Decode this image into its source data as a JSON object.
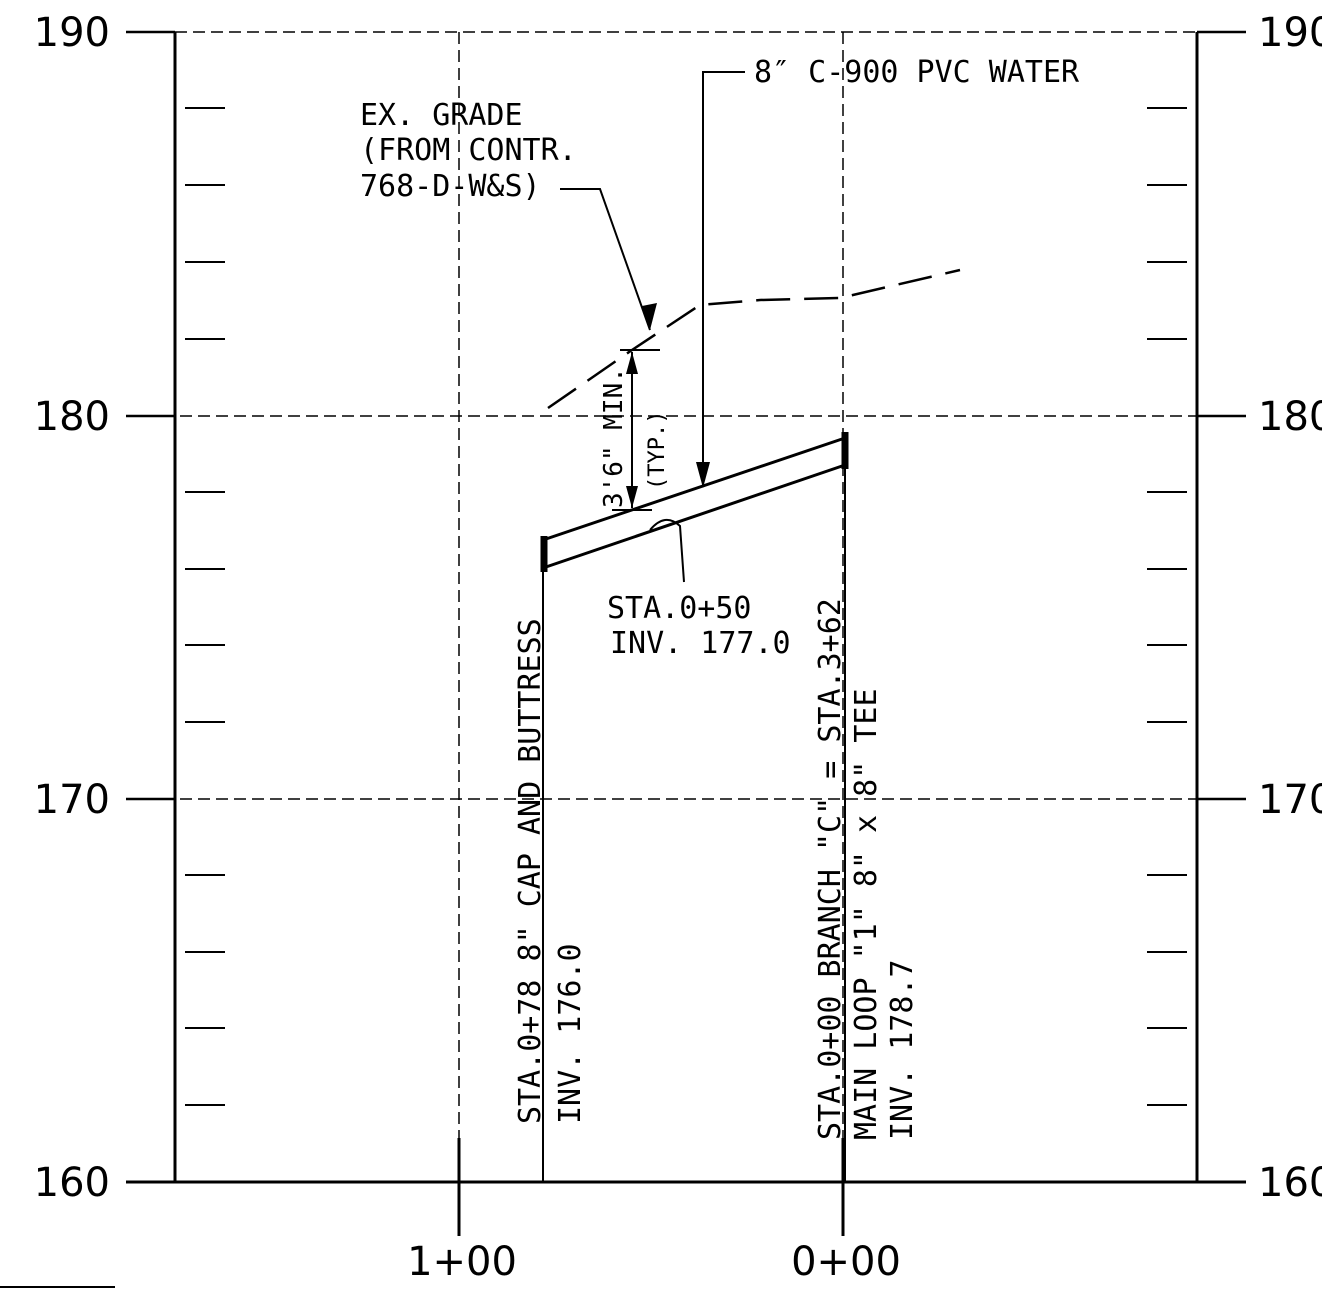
{
  "elevation_axis": {
    "left_labels": [
      "190",
      "180",
      "170",
      "160"
    ],
    "right_labels": [
      "190",
      "180",
      "170",
      "160"
    ]
  },
  "station_axis": {
    "labels": [
      "1+00",
      "0+00"
    ]
  },
  "annotations": {
    "pipe_label": "8″ C-900 PVC WATER",
    "existing_grade": [
      "EX. GRADE",
      "(FROM CONTR.",
      "768-D-W&S)"
    ],
    "cover_dim": "3'6\" MIN.",
    "cover_dim_typ": "(TYP.)",
    "mid_station": [
      "STA.0+50",
      "INV. 177.0"
    ],
    "cap_station": [
      "STA.0+78 8\" CAP AND BUTTRESS",
      "INV. 176.0"
    ],
    "tee_station": [
      "STA.0+00 BRANCH \"C\" = STA.3+62",
      "MAIN LOOP \"1\" 8\" x 8\" TEE",
      "INV. 178.7"
    ]
  },
  "chart_data": {
    "type": "line",
    "xlabel": "",
    "ylabel": "",
    "x_ticks": [
      "1+00",
      "0+00"
    ],
    "ylim": [
      160,
      190
    ],
    "y_ticks": [
      160,
      170,
      180,
      190
    ],
    "series": [
      {
        "x": [
          0.78,
          0.0
        ],
        "y": [
          176.0,
          178.7
        ]
      },
      {
        "x": [
          0.78,
          0.55,
          0.4,
          0.0,
          -0.3
        ],
        "y": [
          180.2,
          182.0,
          182.9,
          183.0,
          183.6
        ]
      }
    ]
  }
}
